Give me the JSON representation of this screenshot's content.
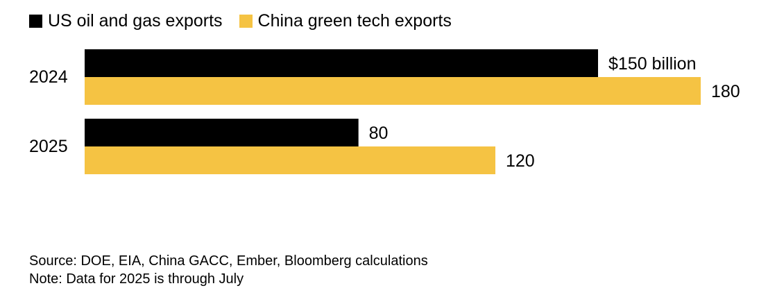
{
  "chart_data": {
    "type": "bar",
    "orientation": "horizontal",
    "categories": [
      "2024",
      "2025"
    ],
    "series": [
      {
        "name": "US oil and gas exports",
        "color": "#000000",
        "values": [
          150,
          80
        ],
        "labels": [
          "$150 billion",
          "80"
        ]
      },
      {
        "name": "China green tech exports",
        "color": "#f5c343",
        "values": [
          180,
          120
        ],
        "labels": [
          "180",
          "120"
        ]
      }
    ],
    "title": "",
    "xlabel": "",
    "ylabel": "",
    "xlim": [
      0,
      180
    ],
    "unit": "billion USD",
    "legend_position": "top-left",
    "grid": false
  },
  "footer": {
    "source": "Source: DOE, EIA, China GACC, Ember, Bloomberg calculations",
    "note": "Note: Data for 2025 is through July"
  }
}
